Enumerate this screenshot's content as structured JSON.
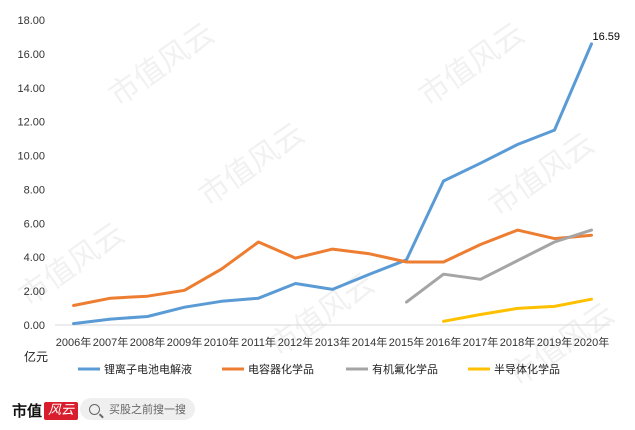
{
  "chart_data": {
    "type": "line",
    "ylabel": "亿元",
    "ylim": [
      0,
      18
    ],
    "yticks": [
      "0.00",
      "2.00",
      "4.00",
      "6.00",
      "8.00",
      "10.00",
      "12.00",
      "14.00",
      "16.00",
      "18.00"
    ],
    "categories": [
      "2006年",
      "2007年",
      "2008年",
      "2009年",
      "2010年",
      "2011年",
      "2012年",
      "2013年",
      "2014年",
      "2015年",
      "2016年",
      "2017年",
      "2018年",
      "2019年",
      "2020年"
    ],
    "grid": false,
    "legend_position": "bottom",
    "series": [
      {
        "name": "锂离子电池电解液",
        "color": "#5B9BD5",
        "values": [
          0.08,
          0.35,
          0.5,
          1.05,
          1.4,
          1.58,
          2.45,
          2.1,
          3.0,
          3.85,
          8.5,
          9.55,
          10.65,
          11.5,
          16.59
        ]
      },
      {
        "name": "电容器化学品",
        "color": "#ED7D31",
        "values": [
          1.15,
          1.58,
          1.7,
          2.05,
          3.3,
          4.9,
          3.95,
          4.48,
          4.2,
          3.72,
          3.72,
          4.75,
          5.6,
          5.1,
          5.3
        ]
      },
      {
        "name": "有机氟化学品",
        "color": "#A5A5A5",
        "values": [
          null,
          null,
          null,
          null,
          null,
          null,
          null,
          null,
          null,
          1.35,
          3.0,
          2.7,
          3.8,
          4.9,
          5.6
        ]
      },
      {
        "name": "半导体化学品",
        "color": "#FFC000",
        "values": [
          null,
          null,
          null,
          null,
          null,
          null,
          null,
          null,
          null,
          null,
          0.22,
          0.62,
          0.98,
          1.1,
          1.52
        ]
      }
    ],
    "annotations": [
      {
        "series": 0,
        "index": 14,
        "text": "16.59"
      }
    ]
  },
  "footer": {
    "brand": "市值",
    "brand_badge": "风云",
    "search_placeholder": "买股之前搜一搜"
  },
  "watermark": "市值风云"
}
